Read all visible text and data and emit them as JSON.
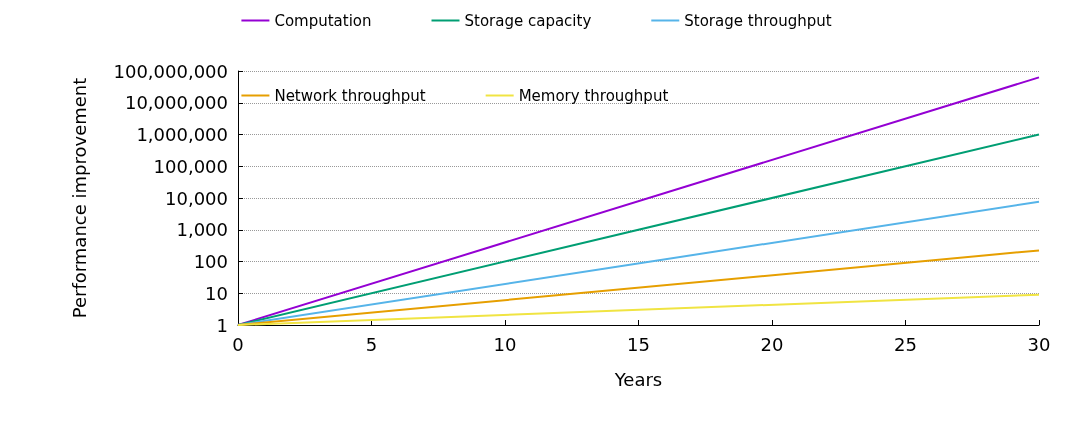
{
  "chart_data": {
    "type": "line",
    "xlabel": "Years",
    "ylabel": "Performance improvement",
    "x": [
      0,
      30
    ],
    "series": [
      {
        "name": "Computation",
        "color": "#9400d3",
        "values": [
          1,
          63000000
        ]
      },
      {
        "name": "Storage capacity",
        "color": "#009e73",
        "values": [
          1,
          1000000
        ]
      },
      {
        "name": "Storage throughput",
        "color": "#56b4e9",
        "values": [
          1,
          7600
        ]
      },
      {
        "name": "Network throughput",
        "color": "#e69f00",
        "values": [
          1,
          224
        ]
      },
      {
        "name": "Memory throughput",
        "color": "#f0e442",
        "values": [
          1,
          9
        ]
      }
    ],
    "log": "y",
    "xlim": [
      0,
      30
    ],
    "xticks": [
      0,
      5,
      10,
      15,
      20,
      25,
      30
    ],
    "ylim": [
      1,
      100000000
    ],
    "yticks": [
      {
        "value": 1,
        "label": "1"
      },
      {
        "value": 10,
        "label": "10"
      },
      {
        "value": 100,
        "label": "100"
      },
      {
        "value": 1000,
        "label": "1,000"
      },
      {
        "value": 10000,
        "label": "10,000"
      },
      {
        "value": 100000,
        "label": "100,000"
      },
      {
        "value": 1000000,
        "label": "1,000,000"
      },
      {
        "value": 10000000,
        "label": "10,000,000"
      },
      {
        "value": 100000000,
        "label": "100,000,000"
      }
    ],
    "grid": "y",
    "legend": "top",
    "marker": "none",
    "line_style": "solid"
  }
}
